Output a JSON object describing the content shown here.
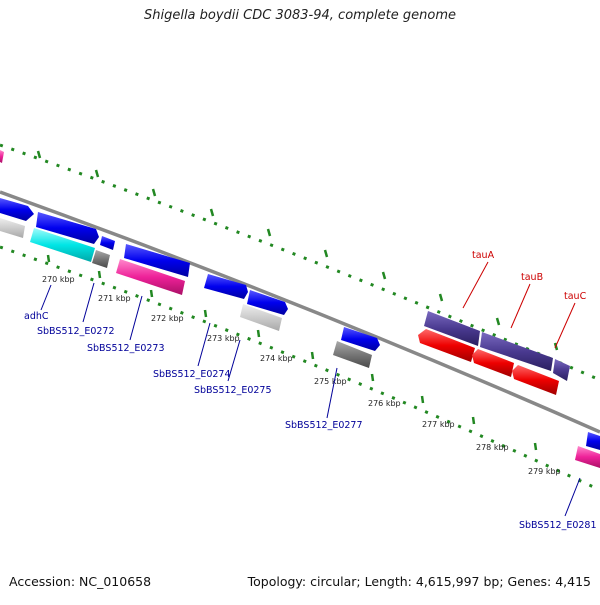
{
  "header": {
    "title": "Shigella boydii CDC 3083-94, complete genome"
  },
  "footer": {
    "accession": "Accession: NC_010658",
    "summary": "Topology: circular; Length: 4,615,997 bp; Genes: 4,415"
  },
  "map": {
    "ticks": [
      "270 kbp",
      "271 kbp",
      "272 kbp",
      "273 kbp",
      "274 kbp",
      "275 kbp",
      "276 kbp",
      "277 kbp",
      "278 kbp",
      "279 kbp"
    ],
    "gene_labels": [
      "adhC",
      "SbBS512_E0272",
      "SbBS512_E0273",
      "SbBS512_E0274",
      "SbBS512_E0275",
      "SbBS512_E0277",
      "tauA",
      "tauB",
      "tauC",
      "SbBS512_E0281"
    ],
    "colors": {
      "backbone": "#888888",
      "dots": "#228822",
      "blue": "#0000ee",
      "cyan": "#00e5e5",
      "magenta": "#ee2299",
      "grey": "#777777",
      "lightgrey": "#c8c8c8",
      "purple": "#4a3a90",
      "red": "#ee0000",
      "label_blue": "#000099",
      "label_red": "#cc0000"
    }
  }
}
